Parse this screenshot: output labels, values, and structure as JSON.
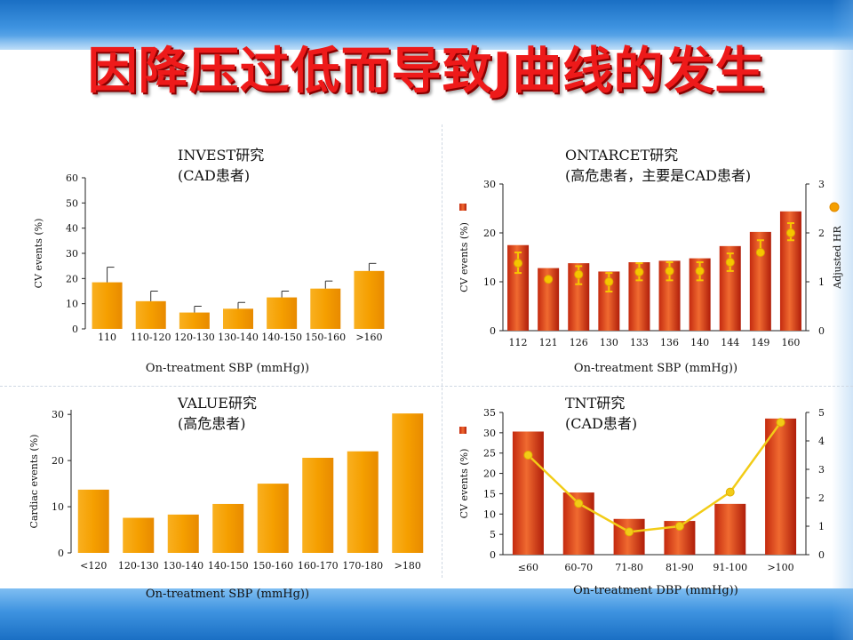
{
  "slide": {
    "title": "因降压过低而导致J曲线的发生"
  },
  "colors": {
    "orange": "#f59f00",
    "red_light": "#ee5520",
    "red_dark": "#b8200c",
    "marker": "#f6c600",
    "hr_line": "#f2cc17"
  },
  "chart_data": [
    {
      "id": "invest",
      "type": "bar",
      "title_lines": [
        "INVEST研究",
        "(CAD患者)"
      ],
      "categories": [
        "110",
        "110-120",
        "120-130",
        "130-140",
        "140-150",
        "150-160",
        ">160"
      ],
      "values": [
        18.5,
        11,
        6.5,
        8,
        12.5,
        16,
        23
      ],
      "error_upper": [
        24.5,
        15,
        9,
        10.5,
        15,
        19,
        26
      ],
      "ylabel": "CV events (%)",
      "xlabel": "On-treatment SBP (mmHg))",
      "ylim": [
        0,
        60
      ],
      "yticks": [
        0,
        10,
        20,
        30,
        40,
        50,
        60
      ],
      "ytick_labels": [
        "0",
        "10",
        "20",
        "30",
        "40",
        "50",
        "60"
      ]
    },
    {
      "id": "ontarcet",
      "type": "bar",
      "title_lines": [
        "ONTARCET研究",
        "(高危患者，主要是CAD患者)"
      ],
      "categories": [
        "112",
        "121",
        "126",
        "130",
        "133",
        "136",
        "140",
        "144",
        "149",
        "160"
      ],
      "values": [
        17.5,
        12.8,
        13.8,
        12.1,
        14,
        14.3,
        14.8,
        17.3,
        20.2,
        24.4
      ],
      "hr_values": [
        1.38,
        1.05,
        1.15,
        1.0,
        1.2,
        1.22,
        1.22,
        1.4,
        1.6,
        2.0
      ],
      "hr_error_lower": [
        1.18,
        1.05,
        0.95,
        0.8,
        1.03,
        1.03,
        1.03,
        1.22,
        1.6,
        1.85
      ],
      "hr_error_upper": [
        1.6,
        1.05,
        1.32,
        1.18,
        1.38,
        1.4,
        1.4,
        1.58,
        1.85,
        2.2
      ],
      "ylabel": "CV events (%)",
      "y2label": "Adjusted HR",
      "xlabel": "On-treatment SBP (mmHg))",
      "ylim": [
        0,
        30
      ],
      "yticks": [
        0,
        10,
        20,
        30
      ],
      "ytick_labels": [
        "0",
        "10",
        "20",
        "30"
      ],
      "y2lim": [
        0,
        3
      ],
      "y2ticks": [
        0,
        1,
        2,
        3
      ],
      "y2tick_labels": [
        "0",
        "1",
        "2",
        "3"
      ]
    },
    {
      "id": "value",
      "type": "bar",
      "title_lines": [
        "VALUE研究",
        "(高危患者)"
      ],
      "categories": [
        "<120",
        "120-130",
        "130-140",
        "140-150",
        "150-160",
        "160-170",
        "170-180",
        ">180"
      ],
      "values": [
        13.7,
        7.6,
        8.3,
        10.6,
        15,
        20.6,
        22,
        30.2
      ],
      "ylabel": "Cardiac events (%)",
      "xlabel": "On-treatment SBP (mmHg))",
      "ylim": [
        0,
        31
      ],
      "yticks": [
        0,
        10,
        20,
        30
      ],
      "ytick_labels": [
        "0",
        "10",
        "20",
        "30"
      ]
    },
    {
      "id": "tnt",
      "type": "bar",
      "title_lines": [
        "TNT研究",
        "(CAD患者)"
      ],
      "categories": [
        "≤60",
        "60-70",
        "71-80",
        "81-90",
        "91-100",
        ">100"
      ],
      "values": [
        30.3,
        15.3,
        8.8,
        8.3,
        12.5,
        33.5
      ],
      "hr_values": [
        3.5,
        1.8,
        0.8,
        1.0,
        2.2,
        4.65
      ],
      "ylabel": "CV events (%)",
      "xlabel": "On-treatment DBP (mmHg))",
      "ylim": [
        0,
        35
      ],
      "yticks": [
        0,
        5,
        10,
        15,
        20,
        25,
        30,
        35
      ],
      "ytick_labels": [
        "0",
        "5",
        "10",
        "15",
        "20",
        "25",
        "30",
        "35"
      ],
      "y2lim": [
        0,
        5
      ],
      "y2ticks": [
        0,
        1,
        2,
        3,
        4,
        5
      ],
      "y2tick_labels": [
        "0",
        "1",
        "2",
        "3",
        "4",
        "5"
      ]
    }
  ]
}
